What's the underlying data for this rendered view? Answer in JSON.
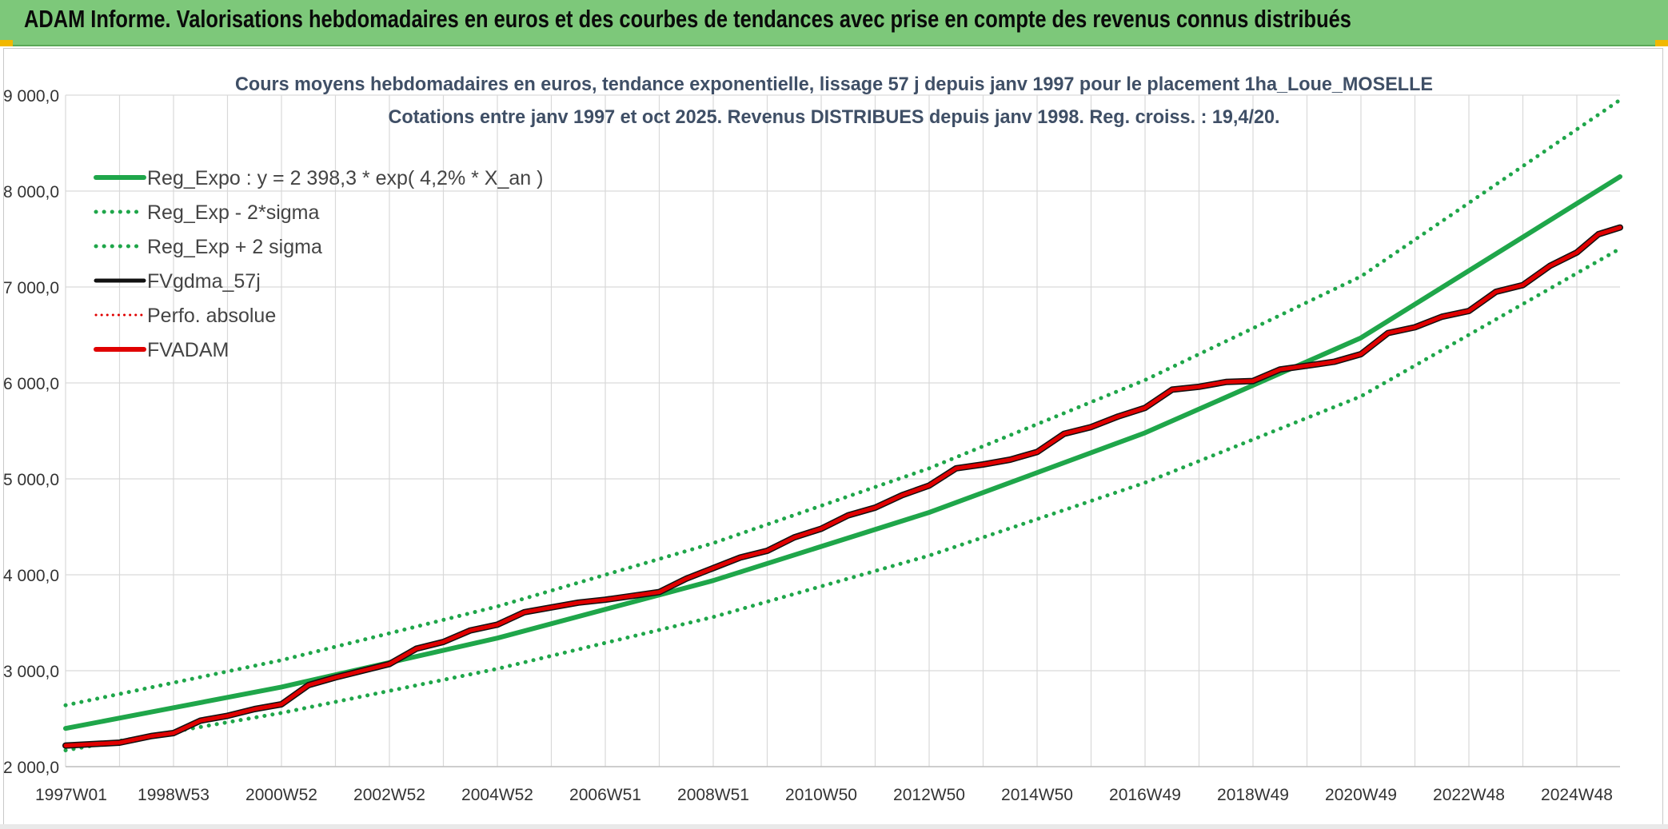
{
  "banner": {
    "title": "ADAM Informe. Valorisations hebdomadaires en euros et des courbes de tendances avec prise en compte des revenus connus distribués"
  },
  "colors": {
    "banner_bg": "#7dc87a",
    "green": "#1fa64a",
    "black": "#111111",
    "red": "#e00000",
    "grid": "#d9d9d9",
    "title_text": "#3f4f66",
    "corner": "#f2b800"
  },
  "chart_data": {
    "type": "line",
    "title_line1": "Cours moyens hebdomadaires en euros, tendance exponentielle, lissage 57 j depuis janv 1997 pour le placement 1ha_Loue_MOSELLE",
    "title_line2": "Cotations entre janv 1997 et oct 2025. Revenus DISTRIBUES depuis janv 1998. Reg. croiss. : 19,4/20.",
    "xlabel": "",
    "ylabel": "",
    "x_range": [
      1997.0,
      2025.8
    ],
    "ylim": [
      2000,
      9000
    ],
    "y_ticks": [
      2000,
      3000,
      4000,
      5000,
      6000,
      7000,
      8000,
      9000
    ],
    "y_tick_labels": [
      "2 000,0",
      "3 000,0",
      "4 000,0",
      "5 000,0",
      "6 000,0",
      "7 000,0",
      "8 000,0",
      "9 000,0"
    ],
    "x_ticks": [
      {
        "label": "1997W01",
        "x": 1997.0
      },
      {
        "label": "1998W53",
        "x": 1999.0
      },
      {
        "label": "2000W52",
        "x": 2001.0
      },
      {
        "label": "2002W52",
        "x": 2003.0
      },
      {
        "label": "2004W52",
        "x": 2005.0
      },
      {
        "label": "2006W51",
        "x": 2007.0
      },
      {
        "label": "2008W51",
        "x": 2009.0
      },
      {
        "label": "2010W50",
        "x": 2011.0
      },
      {
        "label": "2012W50",
        "x": 2013.0
      },
      {
        "label": "2014W50",
        "x": 2015.0
      },
      {
        "label": "2016W49",
        "x": 2017.0
      },
      {
        "label": "2018W49",
        "x": 2019.0
      },
      {
        "label": "2020W49",
        "x": 2021.0
      },
      {
        "label": "2022W48",
        "x": 2023.0
      },
      {
        "label": "2024W48",
        "x": 2025.0
      }
    ],
    "grid": true,
    "legend_position": "top-left",
    "series": [
      {
        "name": "Reg_Expo : y = 2 398,3 * exp( 4,2% *  X_an )",
        "style": "solid",
        "color": "#1fa64a",
        "x": [
          1997.0,
          2001.0,
          2005.0,
          2009.0,
          2013.0,
          2017.0,
          2021.0,
          2025.8
        ],
        "y": [
          2398,
          2830,
          3340,
          3940,
          4650,
          5480,
          6470,
          8150
        ]
      },
      {
        "name": "Reg_Exp - 2*sigma",
        "style": "dotted",
        "color": "#1fa64a",
        "x": [
          1997.0,
          2001.0,
          2005.0,
          2009.0,
          2013.0,
          2017.0,
          2021.0,
          2025.8
        ],
        "y": [
          2170,
          2560,
          3020,
          3560,
          4200,
          4960,
          5860,
          7400
        ]
      },
      {
        "name": "Reg_Exp + 2 sigma",
        "style": "dotted",
        "color": "#1fa64a",
        "x": [
          1997.0,
          2001.0,
          2005.0,
          2009.0,
          2013.0,
          2017.0,
          2021.0,
          2025.8
        ],
        "y": [
          2640,
          3110,
          3670,
          4330,
          5110,
          6030,
          7110,
          8950
        ]
      },
      {
        "name": "FVgdma_57j",
        "style": "solid",
        "color": "#111111",
        "x": [
          1997.0,
          1998.0,
          1998.6,
          1999.0,
          1999.5,
          2000.0,
          2000.5,
          2001.0,
          2001.5,
          2002.0,
          2002.5,
          2003.0,
          2003.5,
          2004.0,
          2004.5,
          2005.0,
          2005.5,
          2006.0,
          2006.5,
          2007.0,
          2007.5,
          2008.0,
          2008.5,
          2009.0,
          2009.5,
          2010.0,
          2010.5,
          2011.0,
          2011.5,
          2012.0,
          2012.5,
          2013.0,
          2013.5,
          2014.0,
          2014.5,
          2015.0,
          2015.5,
          2016.0,
          2016.5,
          2017.0,
          2017.5,
          2018.0,
          2018.5,
          2019.0,
          2019.5,
          2020.0,
          2020.5,
          2021.0,
          2021.5,
          2022.0,
          2022.5,
          2023.0,
          2023.5,
          2024.0,
          2024.5,
          2025.0,
          2025.4,
          2025.8
        ],
        "y": [
          2220,
          2250,
          2320,
          2350,
          2480,
          2530,
          2600,
          2650,
          2850,
          2930,
          3000,
          3070,
          3230,
          3300,
          3420,
          3480,
          3610,
          3660,
          3710,
          3740,
          3780,
          3820,
          3960,
          4070,
          4180,
          4250,
          4390,
          4480,
          4620,
          4700,
          4830,
          4930,
          5110,
          5150,
          5200,
          5280,
          5470,
          5540,
          5650,
          5740,
          5930,
          5960,
          6010,
          6020,
          6140,
          6180,
          6220,
          6300,
          6520,
          6580,
          6690,
          6750,
          6950,
          7020,
          7220,
          7360,
          7550,
          7620
        ]
      },
      {
        "name": "Perfo. absolue",
        "style": "dotted",
        "color": "#e00000",
        "x": [
          1997.0,
          1998.0,
          1998.6,
          1999.0,
          1999.5,
          2000.0,
          2000.5,
          2001.0,
          2001.5,
          2002.0,
          2002.5,
          2003.0,
          2003.5,
          2004.0,
          2004.5,
          2005.0,
          2005.5,
          2006.0,
          2006.5,
          2007.0,
          2007.5,
          2008.0,
          2008.5,
          2009.0,
          2009.5,
          2010.0,
          2010.5,
          2011.0,
          2011.5,
          2012.0,
          2012.5,
          2013.0,
          2013.5,
          2014.0,
          2014.5,
          2015.0,
          2015.5,
          2016.0,
          2016.5,
          2017.0,
          2017.5,
          2018.0,
          2018.5,
          2019.0,
          2019.5,
          2020.0,
          2020.5,
          2021.0,
          2021.5,
          2022.0,
          2022.5,
          2023.0,
          2023.5,
          2024.0,
          2024.5,
          2025.0,
          2025.4,
          2025.8
        ],
        "y": [
          2220,
          2250,
          2320,
          2350,
          2480,
          2530,
          2600,
          2650,
          2850,
          2930,
          3000,
          3070,
          3230,
          3300,
          3420,
          3480,
          3610,
          3660,
          3710,
          3740,
          3780,
          3820,
          3960,
          4070,
          4180,
          4250,
          4390,
          4480,
          4620,
          4700,
          4830,
          4930,
          5110,
          5150,
          5200,
          5280,
          5470,
          5540,
          5650,
          5740,
          5930,
          5960,
          6010,
          6020,
          6140,
          6180,
          6220,
          6300,
          6520,
          6580,
          6690,
          6750,
          6950,
          7020,
          7220,
          7360,
          7550,
          7620
        ]
      },
      {
        "name": "FVADAM",
        "style": "solid",
        "color": "#e00000",
        "x": [
          1997.0,
          1998.0,
          1998.6,
          1999.0,
          1999.5,
          2000.0,
          2000.5,
          2001.0,
          2001.5,
          2002.0,
          2002.5,
          2003.0,
          2003.5,
          2004.0,
          2004.5,
          2005.0,
          2005.5,
          2006.0,
          2006.5,
          2007.0,
          2007.5,
          2008.0,
          2008.5,
          2009.0,
          2009.5,
          2010.0,
          2010.5,
          2011.0,
          2011.5,
          2012.0,
          2012.5,
          2013.0,
          2013.5,
          2014.0,
          2014.5,
          2015.0,
          2015.5,
          2016.0,
          2016.5,
          2017.0,
          2017.5,
          2018.0,
          2018.5,
          2019.0,
          2019.5,
          2020.0,
          2020.5,
          2021.0,
          2021.5,
          2022.0,
          2022.5,
          2023.0,
          2023.5,
          2024.0,
          2024.5,
          2025.0,
          2025.4,
          2025.8
        ],
        "y": [
          2220,
          2250,
          2320,
          2350,
          2480,
          2530,
          2600,
          2650,
          2850,
          2930,
          3000,
          3070,
          3230,
          3300,
          3420,
          3480,
          3610,
          3660,
          3710,
          3740,
          3780,
          3820,
          3960,
          4070,
          4180,
          4250,
          4390,
          4480,
          4620,
          4700,
          4830,
          4930,
          5110,
          5150,
          5200,
          5280,
          5470,
          5540,
          5650,
          5740,
          5930,
          5960,
          6010,
          6020,
          6140,
          6180,
          6220,
          6300,
          6520,
          6580,
          6690,
          6750,
          6950,
          7020,
          7220,
          7360,
          7550,
          7620
        ]
      }
    ]
  }
}
